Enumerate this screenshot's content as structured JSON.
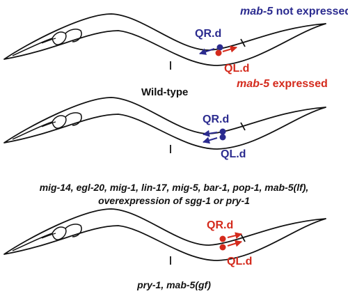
{
  "colors": {
    "blue": "#2b2b8f",
    "red": "#d42a1c",
    "outline": "#111111"
  },
  "legend": {
    "not_expressed_gene": "mab-5",
    "not_expressed_text": " not expressed",
    "expressed_gene": "mab-5",
    "expressed_text": " expressed"
  },
  "panels": [
    {
      "qr_label": "QR.d",
      "ql_label": "QL.d",
      "caption": "Wild-type"
    },
    {
      "qr_label": "QR.d",
      "ql_label": "QL.d",
      "caption_line1": "mig-14, egl-20, mig-1, lin-17, mig-5, bar-1, pop-1, mab-5(lf),",
      "caption_line2": "overexpression of sgg-1 or pry-1"
    },
    {
      "qr_label": "QR.d",
      "ql_label": "QL.d",
      "caption": "pry-1, mab-5(gf)"
    }
  ]
}
